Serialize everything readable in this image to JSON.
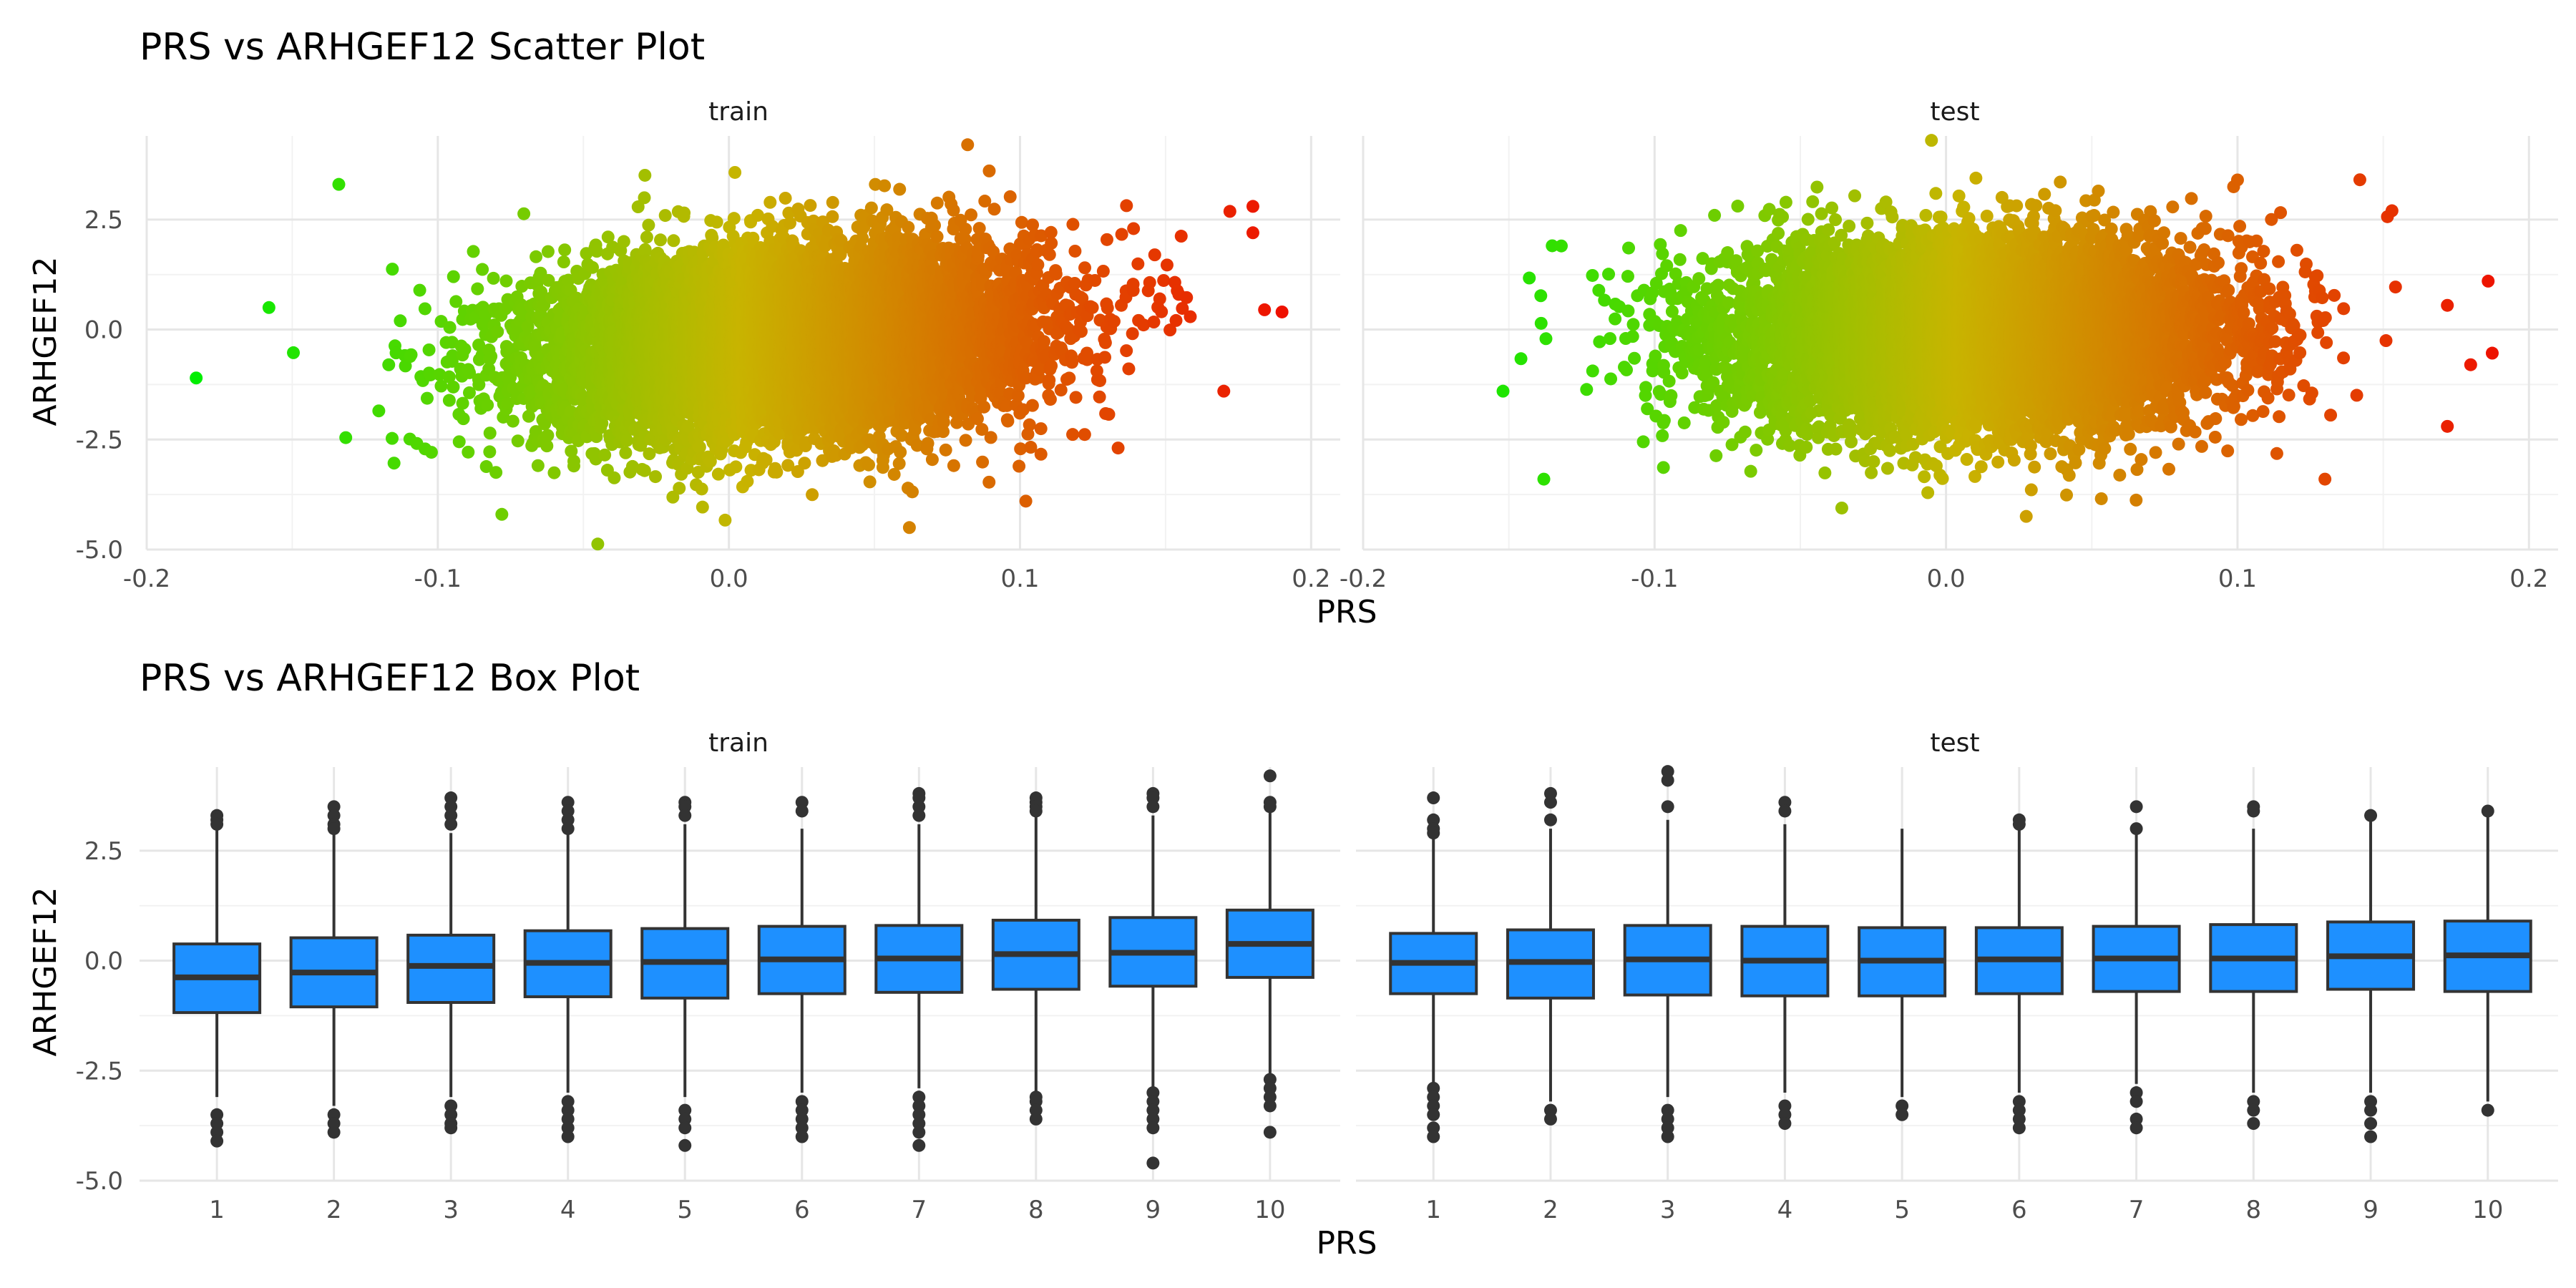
{
  "chart_data": [
    {
      "type": "scatter",
      "title": "PRS vs ARHGEF12 Scatter Plot",
      "xlabel": "PRS",
      "ylabel": "ARHGEF12",
      "facets": [
        "train",
        "test"
      ],
      "xlim": [
        -0.2,
        0.21
      ],
      "ylim": [
        -5.0,
        4.4
      ],
      "x_ticks": [
        "-0.2",
        "-0.1",
        "0.0",
        "0.1",
        "0.2"
      ],
      "y_ticks": [
        "-5.0",
        "-2.5",
        "0.0",
        "2.5"
      ],
      "x_tick_values": [
        -0.2,
        -0.1,
        0.0,
        0.1,
        0.2
      ],
      "y_tick_values": [
        -5.0,
        -2.5,
        0.0,
        2.5
      ],
      "color_scale": {
        "low": "#00ee00",
        "mid": "#c8b400",
        "high": "#ee1100",
        "mapped_to": "PRS"
      },
      "grid": true,
      "distribution": {
        "train": {
          "prs_mean": 0.02,
          "prs_sd": 0.042,
          "arhgef12_mean": -0.25,
          "arhgef12_sd": 1.05,
          "correlation": 0.18
        },
        "test": {
          "prs_mean": 0.01,
          "prs_sd": 0.042,
          "arhgef12_mean": -0.1,
          "arhgef12_sd": 1.05,
          "correlation": 0.05
        }
      },
      "notable_points": {
        "train": [
          {
            "x": -0.183,
            "y": -1.1
          },
          {
            "x": -0.134,
            "y": 3.3
          },
          {
            "x": -0.158,
            "y": 0.5
          },
          {
            "x": 0.062,
            "y": -4.5
          },
          {
            "x": 0.082,
            "y": 4.2
          },
          {
            "x": 0.19,
            "y": 0.4
          },
          {
            "x": 0.184,
            "y": 0.45
          },
          {
            "x": 0.18,
            "y": 2.8
          },
          {
            "x": 0.18,
            "y": 2.2
          },
          {
            "x": 0.17,
            "y": -1.4
          },
          {
            "x": 0.102,
            "y": -3.9
          },
          {
            "x": -0.078,
            "y": -4.2
          }
        ],
        "test": [
          {
            "x": -0.152,
            "y": -1.4
          },
          {
            "x": -0.138,
            "y": -3.4
          },
          {
            "x": -0.132,
            "y": 1.9
          },
          {
            "x": -0.005,
            "y": 4.3
          },
          {
            "x": 0.186,
            "y": 1.1
          },
          {
            "x": 0.18,
            "y": -0.8
          },
          {
            "x": 0.172,
            "y": -2.2
          },
          {
            "x": 0.172,
            "y": 0.55
          },
          {
            "x": 0.153,
            "y": 2.7
          },
          {
            "x": 0.1,
            "y": 3.4
          },
          {
            "x": 0.13,
            "y": -3.4
          }
        ]
      }
    },
    {
      "type": "box",
      "title": "PRS vs ARHGEF12 Box Plot",
      "xlabel": "PRS",
      "ylabel": "ARHGEF12",
      "facets": [
        "train",
        "test"
      ],
      "categories": [
        "1",
        "2",
        "3",
        "4",
        "5",
        "6",
        "7",
        "8",
        "9",
        "10"
      ],
      "ylim": [
        -5.0,
        4.4
      ],
      "y_ticks": [
        "-5.0",
        "-2.5",
        "0.0",
        "2.5"
      ],
      "y_tick_values": [
        -5.0,
        -2.5,
        0.0,
        2.5
      ],
      "box_color": "#1e90ff",
      "line_color": "#333333",
      "grid": true,
      "boxes": {
        "train": [
          {
            "q1": -1.18,
            "median": -0.38,
            "q3": 0.38,
            "lower": -3.1,
            "upper": 3.0,
            "outliers": [
              3.3,
              3.2,
              3.1,
              -3.5,
              -3.7,
              -3.9,
              -4.1
            ]
          },
          {
            "q1": -1.05,
            "median": -0.27,
            "q3": 0.52,
            "lower": -3.3,
            "upper": 2.9,
            "outliers": [
              3.5,
              3.3,
              3.1,
              3.0,
              -3.5,
              -3.7,
              -3.9
            ]
          },
          {
            "q1": -0.95,
            "median": -0.12,
            "q3": 0.58,
            "lower": -3.1,
            "upper": 2.9,
            "outliers": [
              3.7,
              3.5,
              3.3,
              3.1,
              -3.3,
              -3.5,
              -3.7,
              -3.8
            ]
          },
          {
            "q1": -0.82,
            "median": -0.05,
            "q3": 0.68,
            "lower": -3.0,
            "upper": 2.9,
            "outliers": [
              3.6,
              3.4,
              3.2,
              3.0,
              -3.2,
              -3.4,
              -3.6,
              -3.8,
              -4.0
            ]
          },
          {
            "q1": -0.85,
            "median": -0.03,
            "q3": 0.73,
            "lower": -3.1,
            "upper": 3.1,
            "outliers": [
              3.6,
              3.5,
              3.3,
              -3.4,
              -3.6,
              -3.8,
              -4.2
            ]
          },
          {
            "q1": -0.75,
            "median": 0.03,
            "q3": 0.78,
            "lower": -3.0,
            "upper": 3.0,
            "outliers": [
              3.6,
              3.4,
              -3.2,
              -3.4,
              -3.6,
              -3.8,
              -4.0
            ]
          },
          {
            "q1": -0.72,
            "median": 0.05,
            "q3": 0.8,
            "lower": -2.9,
            "upper": 3.1,
            "outliers": [
              3.8,
              3.7,
              3.5,
              3.3,
              -3.1,
              -3.3,
              -3.5,
              -3.7,
              -3.9,
              -4.2
            ]
          },
          {
            "q1": -0.65,
            "median": 0.15,
            "q3": 0.92,
            "lower": -3.0,
            "upper": 3.3,
            "outliers": [
              3.7,
              3.6,
              3.5,
              3.4,
              -3.1,
              -3.2,
              -3.4,
              -3.6
            ]
          },
          {
            "q1": -0.58,
            "median": 0.18,
            "q3": 0.98,
            "lower": -2.9,
            "upper": 3.3,
            "outliers": [
              3.8,
              3.7,
              3.5,
              -3.0,
              -3.2,
              -3.4,
              -3.6,
              -3.8,
              -4.6
            ]
          },
          {
            "q1": -0.38,
            "median": 0.38,
            "q3": 1.15,
            "lower": -2.6,
            "upper": 3.4,
            "outliers": [
              4.2,
              3.6,
              3.5,
              -2.7,
              -2.9,
              -3.1,
              -3.3,
              -3.9
            ]
          }
        ],
        "test": [
          {
            "q1": -0.75,
            "median": -0.05,
            "q3": 0.62,
            "lower": -2.8,
            "upper": 3.0,
            "outliers": [
              3.7,
              3.2,
              3.0,
              2.9,
              -2.9,
              -3.1,
              -3.3,
              -3.5,
              -3.8,
              -4.0
            ]
          },
          {
            "q1": -0.85,
            "median": -0.03,
            "q3": 0.7,
            "lower": -3.2,
            "upper": 3.0,
            "outliers": [
              3.8,
              3.6,
              3.2,
              -3.4,
              -3.6
            ]
          },
          {
            "q1": -0.78,
            "median": 0.03,
            "q3": 0.8,
            "lower": -3.1,
            "upper": 3.2,
            "outliers": [
              4.3,
              4.1,
              3.5,
              -3.4,
              -3.6,
              -3.8,
              -4.0
            ]
          },
          {
            "q1": -0.8,
            "median": 0.0,
            "q3": 0.78,
            "lower": -3.0,
            "upper": 3.1,
            "outliers": [
              3.6,
              3.4,
              -3.3,
              -3.5,
              -3.7
            ]
          },
          {
            "q1": -0.8,
            "median": 0.0,
            "q3": 0.75,
            "lower": -3.1,
            "upper": 3.0,
            "outliers": [
              -3.3,
              -3.5
            ]
          },
          {
            "q1": -0.75,
            "median": 0.03,
            "q3": 0.75,
            "lower": -3.0,
            "upper": 3.0,
            "outliers": [
              3.2,
              3.1,
              -3.2,
              -3.4,
              -3.6,
              -3.8
            ]
          },
          {
            "q1": -0.7,
            "median": 0.05,
            "q3": 0.78,
            "lower": -2.8,
            "upper": 2.9,
            "outliers": [
              3.5,
              3.0,
              -3.0,
              -3.2,
              -3.6,
              -3.8
            ]
          },
          {
            "q1": -0.7,
            "median": 0.05,
            "q3": 0.82,
            "lower": -3.0,
            "upper": 3.0,
            "outliers": [
              3.5,
              3.4,
              -3.2,
              -3.4,
              -3.7
            ]
          },
          {
            "q1": -0.65,
            "median": 0.1,
            "q3": 0.88,
            "lower": -3.0,
            "upper": 3.2,
            "outliers": [
              3.3,
              -3.2,
              -3.4,
              -3.7,
              -4.0
            ]
          },
          {
            "q1": -0.7,
            "median": 0.12,
            "q3": 0.9,
            "lower": -3.2,
            "upper": 3.3,
            "outliers": [
              3.4,
              -3.4
            ]
          }
        ]
      }
    }
  ]
}
